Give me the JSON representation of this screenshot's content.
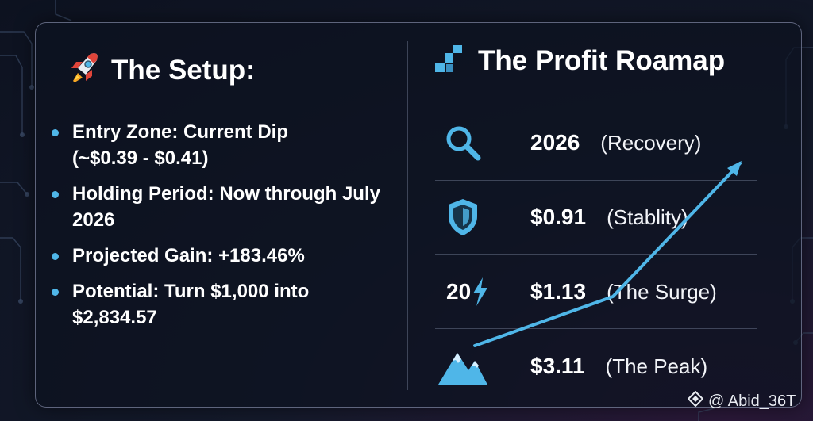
{
  "setup": {
    "title": "The Setup:",
    "icon": "rocket-icon",
    "bullets": [
      {
        "line1": "Entry Zone: Current Dip",
        "line2": "(~$0.39 - $0.41)"
      },
      {
        "line1": "Holding Period: Now through July",
        "line2": "2026"
      },
      {
        "line1": "Projected Gain: +183.46%",
        "line2": ""
      },
      {
        "line1": "Potential: Turn $1,000 into",
        "line2": "$2,834.57"
      }
    ]
  },
  "roadmap": {
    "title": "The Profit Roamap",
    "icon": "steps-chart-icon",
    "rows": [
      {
        "icon": "magnifier-icon",
        "icon_text": "",
        "value": "2026",
        "note": "(Recovery)"
      },
      {
        "icon": "shield-icon",
        "icon_text": "",
        "value": "$0.91",
        "note": "(Stablity)"
      },
      {
        "icon": "lightning-icon",
        "icon_text": "20",
        "value": "$1.13",
        "note": "(The Surge)"
      },
      {
        "icon": "mountain-icon",
        "icon_text": "",
        "value": "$3.11",
        "note": "(The Peak)"
      }
    ]
  },
  "watermark": {
    "icon": "diamond-logo-icon",
    "text": "@ Abid_36T"
  },
  "colors": {
    "accent": "#4fb6e8",
    "card_border": "#a0aac8",
    "background": "#0d1220"
  }
}
